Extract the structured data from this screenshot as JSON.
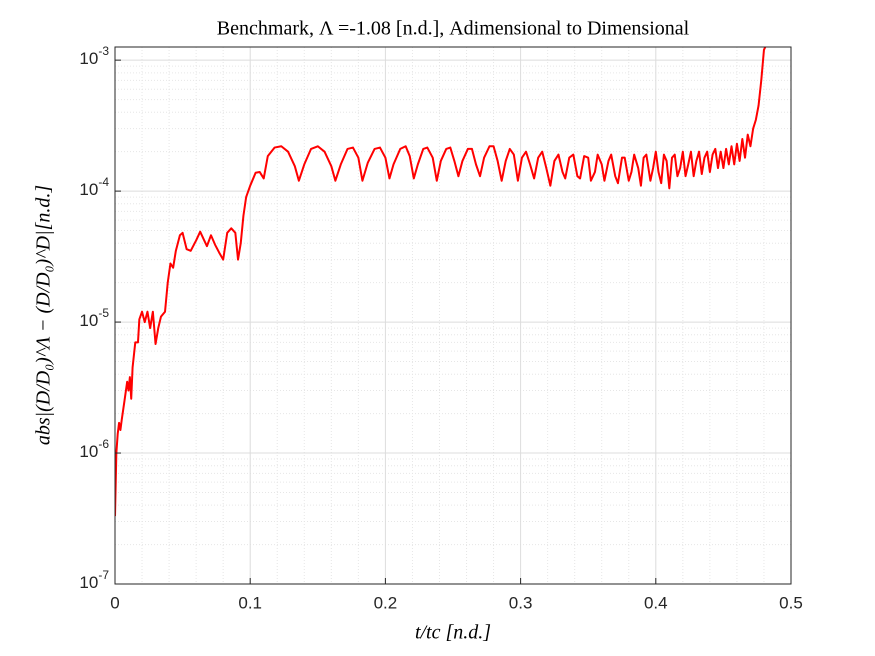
{
  "chart_data": {
    "type": "line",
    "title": "Benchmark, Λ =-1.08 [n.d.], Adimensional to Dimensional",
    "x_label": "t/tc [n.d.]",
    "y_label": "abs|(D/D₀)^Λ − (D/D₀)^D|[n.d.]",
    "log_y": true,
    "grid": true,
    "minor_grid": true,
    "xlim": [
      0,
      0.5
    ],
    "xticks": [
      0,
      0.1,
      0.2,
      0.3,
      0.4,
      0.5
    ],
    "ylim": [
      1e-07,
      0.00126
    ],
    "yticks": [
      {
        "value": 1e-07,
        "label": "10",
        "exponent": "-7"
      },
      {
        "value": 1e-06,
        "label": "10",
        "exponent": "-6"
      },
      {
        "value": 1e-05,
        "label": "10",
        "exponent": "-5"
      },
      {
        "value": 0.0001,
        "label": "10",
        "exponent": "-4"
      },
      {
        "value": 0.001,
        "label": "10",
        "exponent": "-3"
      }
    ],
    "series": [
      {
        "color": "#ff0000",
        "x": [
          0,
          0.001,
          0.002,
          0.003,
          0.004,
          0.005,
          0.007,
          0.009,
          0.01,
          0.011,
          0.012,
          0.013,
          0.015,
          0.017,
          0.018,
          0.02,
          0.022,
          0.024,
          0.026,
          0.028,
          0.03,
          0.032,
          0.034,
          0.037,
          0.039,
          0.041,
          0.043,
          0.045,
          0.048,
          0.05,
          0.053,
          0.056,
          0.06,
          0.063,
          0.066,
          0.068,
          0.071,
          0.074,
          0.077,
          0.08,
          0.083,
          0.086,
          0.089,
          0.091,
          0.093,
          0.095,
          0.097,
          0.1,
          0.104,
          0.107,
          0.11,
          0.113,
          0.118,
          0.123,
          0.128,
          0.133,
          0.136,
          0.14,
          0.145,
          0.15,
          0.155,
          0.16,
          0.163,
          0.167,
          0.172,
          0.176,
          0.18,
          0.183,
          0.187,
          0.192,
          0.196,
          0.2,
          0.203,
          0.206,
          0.211,
          0.215,
          0.218,
          0.221,
          0.224,
          0.228,
          0.231,
          0.235,
          0.238,
          0.241,
          0.245,
          0.248,
          0.251,
          0.254,
          0.257,
          0.261,
          0.264,
          0.267,
          0.27,
          0.273,
          0.277,
          0.28,
          0.283,
          0.286,
          0.289,
          0.292,
          0.295,
          0.298,
          0.301,
          0.304,
          0.307,
          0.31,
          0.313,
          0.316,
          0.319,
          0.322,
          0.325,
          0.328,
          0.331,
          0.333,
          0.336,
          0.339,
          0.342,
          0.344,
          0.347,
          0.35,
          0.352,
          0.355,
          0.357,
          0.36,
          0.362,
          0.365,
          0.367,
          0.37,
          0.372,
          0.375,
          0.377,
          0.38,
          0.382,
          0.384,
          0.387,
          0.389,
          0.391,
          0.393,
          0.396,
          0.398,
          0.4,
          0.402,
          0.404,
          0.406,
          0.408,
          0.41,
          0.412,
          0.414,
          0.416,
          0.418,
          0.42,
          0.422,
          0.424,
          0.426,
          0.428,
          0.43,
          0.432,
          0.434,
          0.436,
          0.438,
          0.44,
          0.442,
          0.444,
          0.446,
          0.448,
          0.45,
          0.452,
          0.454,
          0.456,
          0.458,
          0.46,
          0.462,
          0.464,
          0.466,
          0.468,
          0.47,
          0.472,
          0.474,
          0.476,
          0.478,
          0.48,
          0.481
        ],
        "values": [
          3.3e-07,
          1e-06,
          1.4e-06,
          1.7e-06,
          1.5e-06,
          1.8e-06,
          2.5e-06,
          3.5e-06,
          3e-06,
          3.8e-06,
          2.6e-06,
          4.5e-06,
          7e-06,
          7e-06,
          1.05e-05,
          1.2e-05,
          1e-05,
          1.2e-05,
          9e-06,
          1.2e-05,
          6.8e-06,
          9e-06,
          1.1e-05,
          1.2e-05,
          2e-05,
          2.8e-05,
          2.6e-05,
          3.5e-05,
          4.6e-05,
          4.8e-05,
          3.6e-05,
          3.5e-05,
          4.2e-05,
          4.9e-05,
          4.2e-05,
          3.8e-05,
          4.6e-05,
          3.9e-05,
          3.4e-05,
          3e-05,
          4.8e-05,
          5.2e-05,
          4.8e-05,
          3e-05,
          4e-05,
          6.5e-05,
          9e-05,
          0.00011,
          0.000138,
          0.00014,
          0.000125,
          0.000185,
          0.000215,
          0.00022,
          0.0002,
          0.000155,
          0.00012,
          0.00016,
          0.00021,
          0.00022,
          0.0002,
          0.000155,
          0.00012,
          0.00016,
          0.00021,
          0.000215,
          0.00018,
          0.00012,
          0.000165,
          0.00021,
          0.000215,
          0.00018,
          0.000125,
          0.00016,
          0.00021,
          0.00022,
          0.000185,
          0.000125,
          0.00016,
          0.00021,
          0.000215,
          0.00018,
          0.00012,
          0.00017,
          0.00021,
          0.000215,
          0.00017,
          0.00013,
          0.00017,
          0.00021,
          0.00021,
          0.00016,
          0.00013,
          0.00018,
          0.00022,
          0.00022,
          0.00017,
          0.00012,
          0.00017,
          0.00021,
          0.00019,
          0.00012,
          0.00018,
          0.0002,
          0.00016,
          0.000125,
          0.00018,
          0.0002,
          0.00015,
          0.00011,
          0.00017,
          0.00019,
          0.00014,
          0.000125,
          0.00018,
          0.00019,
          0.00013,
          0.000125,
          0.000185,
          0.00018,
          0.00012,
          0.00014,
          0.00019,
          0.00016,
          0.00012,
          0.00017,
          0.00019,
          0.00013,
          0.000115,
          0.00018,
          0.00018,
          0.00012,
          0.00014,
          0.00019,
          0.00015,
          0.00011,
          0.00018,
          0.00019,
          0.00012,
          0.00015,
          0.0002,
          0.00014,
          0.000115,
          0.00019,
          0.00017,
          0.000105,
          0.00018,
          0.00019,
          0.00013,
          0.00015,
          0.0002,
          0.00013,
          0.00016,
          0.0002,
          0.00013,
          0.00017,
          0.0002,
          0.000135,
          0.00018,
          0.0002,
          0.00014,
          0.00019,
          0.00021,
          0.00015,
          0.0002,
          0.00015,
          0.00021,
          0.00016,
          0.00022,
          0.00016,
          0.00023,
          0.00017,
          0.00025,
          0.00018,
          0.00027,
          0.00022,
          0.0003,
          0.00035,
          0.00045,
          0.0007,
          0.0012,
          0.00126
        ]
      }
    ]
  }
}
